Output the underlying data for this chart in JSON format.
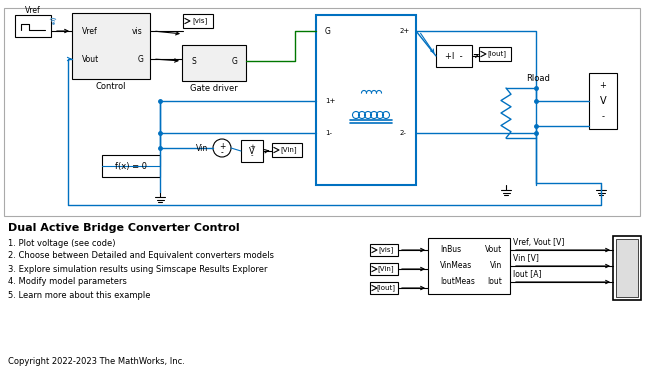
{
  "title": "Dual Active Bridge Converter Control",
  "bg_color": "#ffffff",
  "wire_blue": "#0070c0",
  "wire_green": "#007700",
  "bullet_items": [
    "1. Plot voltage (see code)",
    "2. Choose between Detailed and Equivalent converters models",
    "3. Explore simulation results using Simscape Results Explorer",
    "4. Modify model parameters",
    "5. Learn more about this example"
  ],
  "copyright": "Copyright 2022-2023 The MathWorks, Inc."
}
